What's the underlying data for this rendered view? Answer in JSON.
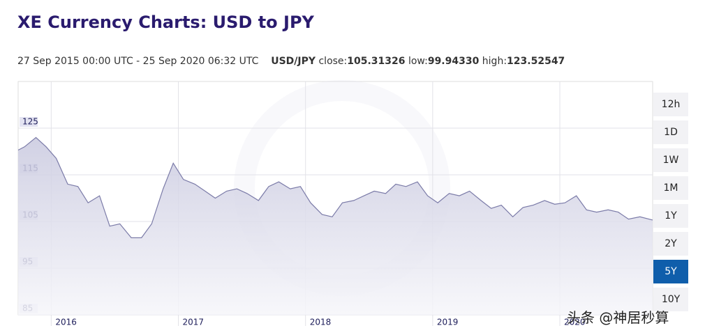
{
  "header": {
    "title": "XE Currency Charts: USD to JPY",
    "period": "27 Sep 2015 00:00 UTC - 25 Sep 2020 06:32 UTC",
    "pair": "USD/JPY",
    "stats": [
      {
        "label": "close:",
        "value": "105.31326"
      },
      {
        "label": "low:",
        "value": "99.94330"
      },
      {
        "label": "high:",
        "value": "123.52547"
      }
    ]
  },
  "chart_data": {
    "type": "area",
    "color": "#7b7ba8",
    "x": [
      2015.74,
      2015.79,
      2015.88,
      2015.96,
      2016.04,
      2016.13,
      2016.21,
      2016.29,
      2016.38,
      2016.46,
      2016.54,
      2016.63,
      2016.71,
      2016.79,
      2016.88,
      2016.96,
      2017.04,
      2017.13,
      2017.21,
      2017.29,
      2017.38,
      2017.46,
      2017.54,
      2017.63,
      2017.71,
      2017.79,
      2017.88,
      2017.96,
      2018.04,
      2018.13,
      2018.21,
      2018.29,
      2018.38,
      2018.46,
      2018.54,
      2018.63,
      2018.71,
      2018.79,
      2018.88,
      2018.96,
      2019.04,
      2019.13,
      2019.21,
      2019.29,
      2019.38,
      2019.46,
      2019.54,
      2019.63,
      2019.71,
      2019.79,
      2019.88,
      2019.96,
      2020.04,
      2020.13,
      2020.21,
      2020.29,
      2020.38,
      2020.46,
      2020.54,
      2020.63,
      2020.73
    ],
    "values": [
      120.3,
      121,
      123,
      121,
      118.5,
      113,
      112.5,
      109,
      110.5,
      104,
      104.5,
      101.5,
      101.5,
      104.5,
      112,
      117.5,
      114,
      113,
      111.5,
      110,
      111.5,
      112,
      111,
      109.5,
      112.5,
      113.5,
      112,
      112.5,
      109,
      106.5,
      106,
      109,
      109.5,
      110.5,
      111.5,
      111,
      113,
      112.5,
      113.5,
      110.5,
      109,
      111,
      110.5,
      111.5,
      109.5,
      107.8,
      108.5,
      106,
      108,
      108.5,
      109.5,
      108.7,
      109,
      110.5,
      107.5,
      107,
      107.5,
      107,
      105.5,
      106,
      105.31
    ],
    "xlim": [
      2015.74,
      2020.73
    ],
    "xticks": [
      2016,
      2017,
      2018,
      2019,
      2020
    ],
    "ylim": [
      85,
      135
    ],
    "yticks": [
      85,
      95,
      105,
      115,
      125
    ],
    "grid": true
  },
  "range_buttons": [
    "12h",
    "1D",
    "1W",
    "1M",
    "1Y",
    "2Y",
    "5Y",
    "10Y"
  ],
  "active_button": 6,
  "watermark": "头条 @神居秒算"
}
